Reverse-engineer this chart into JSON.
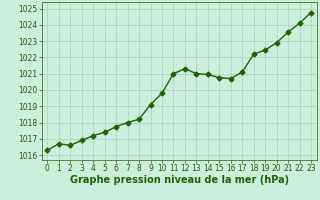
{
  "x": [
    0,
    1,
    2,
    3,
    4,
    5,
    6,
    7,
    8,
    9,
    10,
    11,
    12,
    13,
    14,
    15,
    16,
    17,
    18,
    19,
    20,
    21,
    22,
    23
  ],
  "y": [
    1016.3,
    1016.7,
    1016.6,
    1016.9,
    1017.2,
    1017.4,
    1017.75,
    1018.0,
    1018.2,
    1019.1,
    1019.8,
    1021.0,
    1021.3,
    1021.0,
    1020.95,
    1020.75,
    1020.7,
    1021.1,
    1022.2,
    1022.45,
    1022.9,
    1023.55,
    1024.1,
    1024.75
  ],
  "line_color": "#1a6600",
  "marker": "D",
  "marker_size": 2.5,
  "linewidth": 1.0,
  "xlabel": "Graphe pression niveau de la mer (hPa)",
  "xlim": [
    -0.5,
    23.5
  ],
  "ylim": [
    1015.7,
    1025.4
  ],
  "yticks": [
    1016,
    1017,
    1018,
    1019,
    1020,
    1021,
    1022,
    1023,
    1024,
    1025
  ],
  "xticks": [
    0,
    1,
    2,
    3,
    4,
    5,
    6,
    7,
    8,
    9,
    10,
    11,
    12,
    13,
    14,
    15,
    16,
    17,
    18,
    19,
    20,
    21,
    22,
    23
  ],
  "bg_color": "#cceedd",
  "grid_color": "#aaccbb",
  "text_color": "#1a6600",
  "xlabel_fontsize": 7.0,
  "tick_fontsize": 5.5
}
